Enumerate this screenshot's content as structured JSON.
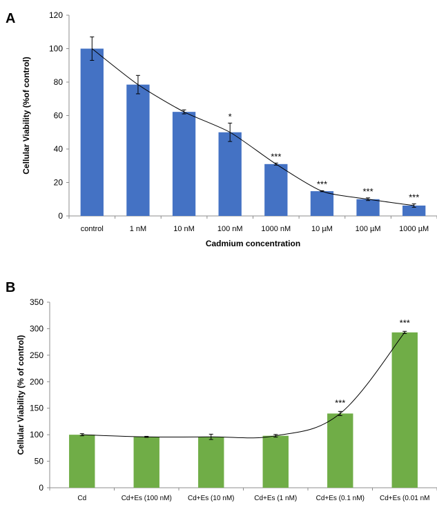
{
  "chart_data": [
    {
      "type": "bar",
      "panel_label": "A",
      "title": "",
      "xlabel": "Cadmium concentration",
      "ylabel": "Cellular Viability (%of control)",
      "ylim": [
        0,
        120
      ],
      "yticks": [
        "0",
        "20",
        "40",
        "60",
        "80",
        "100",
        "120"
      ],
      "grid": false,
      "bar_color": "#4472C4",
      "categories": [
        "control",
        "1 nM",
        "10 nM",
        "100 nM",
        "1000 nM",
        "10 µM",
        "100 µM",
        "1000 µM"
      ],
      "values": [
        100,
        78.5,
        62.2,
        50,
        31,
        14.8,
        10,
        6.2
      ],
      "errors": [
        7,
        5.5,
        1.2,
        5.5,
        0.6,
        0.3,
        0.8,
        1
      ],
      "significance": [
        "",
        "",
        "",
        "*",
        "***",
        "***",
        "***",
        "***"
      ],
      "trendline": true
    },
    {
      "type": "bar",
      "panel_label": "B",
      "title": "",
      "xlabel": "",
      "ylabel": "Cellular Viability (% of control)",
      "ylim": [
        0,
        350
      ],
      "yticks": [
        "0",
        "50",
        "100",
        "150",
        "200",
        "250",
        "300",
        "350"
      ],
      "grid": false,
      "bar_color": "#70AD47",
      "categories": [
        "Cd",
        "Cd+Es (100 nM)",
        "Cd+Es (10 nM)",
        "Cd+Es (1 nM)",
        "Cd+Es (0.1 nM)",
        "Cd+Es (0.01 nM"
      ],
      "values": [
        100,
        96,
        96,
        98,
        140,
        293
      ],
      "errors": [
        2,
        1,
        5,
        2.5,
        4,
        2
      ],
      "significance": [
        "",
        "",
        "",
        "",
        "***",
        "***"
      ],
      "trendline": true
    }
  ]
}
